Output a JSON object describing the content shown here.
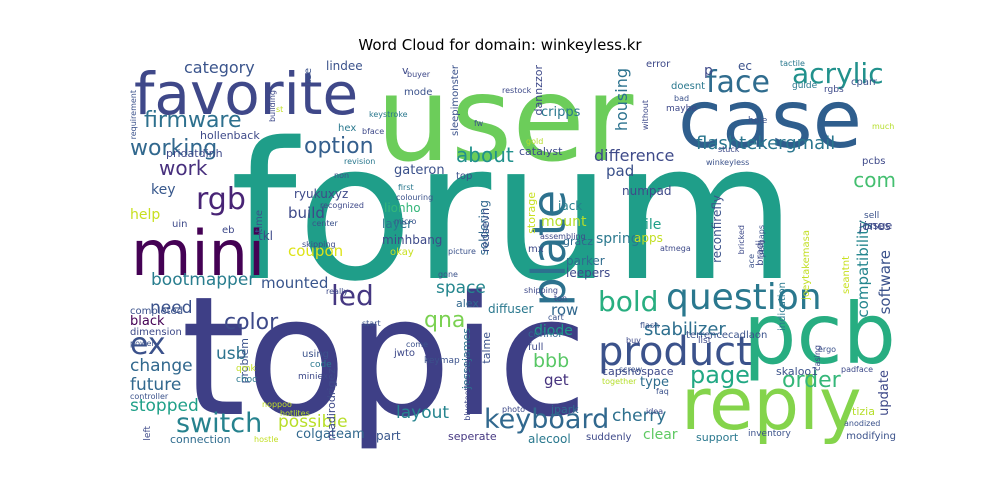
{
  "chart_data": {
    "type": "wordcloud",
    "title": "Word Cloud for domain: winkeyless.kr",
    "words": [
      {
        "text": "forum",
        "weight": 1.0,
        "color": "#1f9e89"
      },
      {
        "text": "topic",
        "weight": 0.93,
        "color": "#3e3f86"
      },
      {
        "text": "user",
        "weight": 0.66,
        "color": "#6ccd5a"
      },
      {
        "text": "case",
        "weight": 0.44,
        "color": "#2f5e8d"
      },
      {
        "text": "pcb",
        "weight": 0.44,
        "color": "#27ad81"
      },
      {
        "text": "reply",
        "weight": 0.38,
        "color": "#84d44b"
      },
      {
        "text": "mini",
        "weight": 0.36,
        "color": "#440154"
      },
      {
        "text": "favorite",
        "weight": 0.34,
        "color": "#3f4889"
      },
      {
        "text": "product",
        "weight": 0.25,
        "color": "#3b528b"
      },
      {
        "text": "question",
        "weight": 0.22,
        "color": "#2a788e"
      },
      {
        "text": "rgb",
        "weight": 0.18,
        "color": "#482475"
      },
      {
        "text": "plate",
        "weight": 0.17,
        "color": "#2c718e"
      },
      {
        "text": "face",
        "weight": 0.16,
        "color": "#2f6c8e"
      },
      {
        "text": "acrylic",
        "weight": 0.16,
        "color": "#21918c"
      },
      {
        "text": "bold",
        "weight": 0.16,
        "color": "#28ae80"
      },
      {
        "text": "ex",
        "weight": 0.16,
        "color": "#3b518b"
      },
      {
        "text": "keyboard",
        "weight": 0.15,
        "color": "#31688e"
      },
      {
        "text": "switch",
        "weight": 0.15,
        "color": "#26828e"
      },
      {
        "text": "led",
        "weight": 0.15,
        "color": "#453781"
      },
      {
        "text": "page",
        "weight": 0.14,
        "color": "#22a884"
      },
      {
        "text": "firmware",
        "weight": 0.13,
        "color": "#2d708e"
      },
      {
        "text": "working",
        "weight": 0.13,
        "color": "#31688e"
      },
      {
        "text": "color",
        "weight": 0.12,
        "color": "#3e4a89"
      },
      {
        "text": "order",
        "weight": 0.12,
        "color": "#35b779"
      },
      {
        "text": "option",
        "weight": 0.12,
        "color": "#355f8d"
      },
      {
        "text": "qna",
        "weight": 0.12,
        "color": "#7ad151"
      },
      {
        "text": "about",
        "weight": 0.11,
        "color": "#21918c"
      },
      {
        "text": "work",
        "weight": 0.11,
        "color": "#472f7d"
      },
      {
        "text": "com",
        "weight": 0.11,
        "color": "#44bf70"
      },
      {
        "text": "flashtekergmail",
        "weight": 0.11,
        "color": "#2a768e"
      },
      {
        "text": "category",
        "weight": 0.1,
        "color": "#3a548c"
      },
      {
        "text": "bootmapper",
        "weight": 0.1,
        "color": "#287d8e"
      },
      {
        "text": "bbb",
        "weight": 0.1,
        "color": "#58c765"
      },
      {
        "text": "stabilizer",
        "weight": 0.1,
        "color": "#2e6f8e"
      },
      {
        "text": "change",
        "weight": 0.1,
        "color": "#31688e"
      },
      {
        "text": "future",
        "weight": 0.1,
        "color": "#31688e"
      },
      {
        "text": "stopped",
        "weight": 0.1,
        "color": "#1fa088"
      },
      {
        "text": "layout",
        "weight": 0.1,
        "color": "#25848e"
      },
      {
        "text": "possible",
        "weight": 0.1,
        "color": "#b8de29"
      },
      {
        "text": "difference",
        "weight": 0.09,
        "color": "#3e4a89"
      },
      {
        "text": "housing",
        "weight": 0.09,
        "color": "#2c728e"
      },
      {
        "text": "usb",
        "weight": 0.09,
        "color": "#2c738e"
      },
      {
        "text": "space",
        "weight": 0.09,
        "color": "#24868e"
      },
      {
        "text": "need",
        "weight": 0.09,
        "color": "#3b528b"
      },
      {
        "text": "cherry",
        "weight": 0.09,
        "color": "#2d708e"
      },
      {
        "text": "software",
        "weight": 0.08,
        "color": "#3b528b"
      },
      {
        "text": "compatibility",
        "weight": 0.08,
        "color": "#24868e"
      },
      {
        "text": "mounted",
        "weight": 0.08,
        "color": "#39558c"
      },
      {
        "text": "coupon",
        "weight": 0.08,
        "color": "#dde318"
      },
      {
        "text": "build",
        "weight": 0.08,
        "color": "#3e4989"
      },
      {
        "text": "mount",
        "weight": 0.08,
        "color": "#b5de2b"
      },
      {
        "text": "key",
        "weight": 0.08,
        "color": "#38588c"
      },
      {
        "text": "help",
        "weight": 0.08,
        "color": "#c8e020"
      },
      {
        "text": "pad",
        "weight": 0.08,
        "color": "#3b518b"
      },
      {
        "text": "spring",
        "weight": 0.08,
        "color": "#2a788e"
      },
      {
        "text": "row",
        "weight": 0.08,
        "color": "#31688e"
      },
      {
        "text": "clear",
        "weight": 0.07,
        "color": "#5ec962"
      },
      {
        "text": "get",
        "weight": 0.07,
        "color": "#46337e"
      },
      {
        "text": "diode",
        "weight": 0.07,
        "color": "#1e9b8a"
      },
      {
        "text": "colgateam",
        "weight": 0.07,
        "color": "#31688e"
      },
      {
        "text": "gateron",
        "weight": 0.07,
        "color": "#3b518b"
      },
      {
        "text": "cripps",
        "weight": 0.07,
        "color": "#2a788e"
      },
      {
        "text": "file",
        "weight": 0.07,
        "color": "#1f9f88"
      },
      {
        "text": "ryukuxyz",
        "weight": 0.07,
        "color": "#3e4a89"
      },
      {
        "text": "update",
        "weight": 0.07,
        "color": "#3e4989"
      },
      {
        "text": "type",
        "weight": 0.07,
        "color": "#2f6c8e"
      },
      {
        "text": "lindee",
        "weight": 0.06,
        "color": "#3b528b"
      },
      {
        "text": "layer",
        "weight": 0.06,
        "color": "#2c728e"
      },
      {
        "text": "minhbang",
        "weight": 0.06,
        "color": "#3e4a89"
      },
      {
        "text": "lionho",
        "weight": 0.06,
        "color": "#34b679"
      },
      {
        "text": "jones",
        "weight": 0.06,
        "color": "#3e4a89"
      },
      {
        "text": "alecool",
        "weight": 0.06,
        "color": "#2a788e"
      },
      {
        "text": "part",
        "weight": 0.06,
        "color": "#39568c"
      },
      {
        "text": "apps",
        "weight": 0.06,
        "color": "#c2df23"
      },
      {
        "text": "tkl",
        "weight": 0.06,
        "color": "#3e4a89"
      },
      {
        "text": "parker",
        "weight": 0.06,
        "color": "#2f6c8e"
      },
      {
        "text": "leepers",
        "weight": 0.06,
        "color": "#3e4989"
      },
      {
        "text": "soldering",
        "weight": 0.06,
        "color": "#31688e"
      },
      {
        "text": "numpad",
        "weight": 0.06,
        "color": "#3e4a89"
      },
      {
        "text": "jack",
        "weight": 0.06,
        "color": "#277f8e"
      },
      {
        "text": "reconfirefly",
        "weight": 0.06,
        "color": "#3b528b"
      },
      {
        "text": "seperate",
        "weight": 0.05,
        "color": "#453781"
      },
      {
        "text": "support",
        "weight": 0.05,
        "color": "#2a788e"
      },
      {
        "text": "problem",
        "weight": 0.05,
        "color": "#3b528b"
      },
      {
        "text": "black",
        "weight": 0.05,
        "color": "#440154"
      },
      {
        "text": "issue",
        "weight": 0.05,
        "color": "#3e4a89"
      },
      {
        "text": "connection",
        "weight": 0.05,
        "color": "#2f6c8e"
      },
      {
        "text": "alex",
        "weight": 0.05,
        "color": "#31688e"
      },
      {
        "text": "diffuser",
        "weight": 0.05,
        "color": "#2a788e"
      },
      {
        "text": "skaloo1",
        "weight": 0.05,
        "color": "#3b528b"
      },
      {
        "text": "capsnospace",
        "weight": 0.05,
        "color": "#3e4989"
      },
      {
        "text": "jpark",
        "weight": 0.05,
        "color": "#2f6c8e"
      },
      {
        "text": "madirodrigez",
        "weight": 0.05,
        "color": "#3e4a89"
      },
      {
        "text": "jessejames",
        "weight": 0.05,
        "color": "#2c728e"
      },
      {
        "text": "talme",
        "weight": 0.05,
        "color": "#3b528b"
      },
      {
        "text": "gracz",
        "weight": 0.05,
        "color": "#31688e"
      },
      {
        "text": "hollenback",
        "weight": 0.05,
        "color": "#3e4a89"
      },
      {
        "text": "pridatdinh",
        "weight": 0.05,
        "color": "#3e4989"
      },
      {
        "text": "sleepimonster",
        "weight": 0.05,
        "color": "#3b528b"
      },
      {
        "text": "dannzzor",
        "weight": 0.05,
        "color": "#3e4989"
      },
      {
        "text": "catalyst",
        "weight": 0.05,
        "color": "#3e4a89"
      },
      {
        "text": "storage",
        "weight": 0.05,
        "color": "#c8e020"
      },
      {
        "text": "redsevn",
        "weight": 0.05,
        "color": "#3b528b"
      },
      {
        "text": "joeytakemasa",
        "weight": 0.05,
        "color": "#c2df23"
      },
      {
        "text": "indication",
        "weight": 0.05,
        "color": "#2a788e"
      },
      {
        "text": "seantnt",
        "weight": 0.05,
        "color": "#c8e020"
      },
      {
        "text": "terrencecadlaon",
        "weight": 0.05,
        "color": "#3b528b"
      },
      {
        "text": "bradj",
        "weight": 0.05,
        "color": "#3e4a89"
      },
      {
        "text": "mode",
        "weight": 0.05,
        "color": "#3b528b"
      },
      {
        "text": "error",
        "weight": 0.05,
        "color": "#3e4989"
      },
      {
        "text": "doesnt",
        "weight": 0.05,
        "color": "#2a788e"
      },
      {
        "text": "ec",
        "weight": 0.05,
        "color": "#3b528b"
      },
      {
        "text": "p",
        "weight": 0.05,
        "color": "#3e4989"
      },
      {
        "text": "okay",
        "weight": 0.05,
        "color": "#c8e020"
      },
      {
        "text": "dimension",
        "weight": 0.04,
        "color": "#3e4a89"
      },
      {
        "text": "completed",
        "weight": 0.04,
        "color": "#3b528b"
      },
      {
        "text": "uin",
        "weight": 0.04,
        "color": "#3e4a89"
      },
      {
        "text": "eb",
        "weight": 0.04,
        "color": "#3e4989"
      },
      {
        "text": "top",
        "weight": 0.04,
        "color": "#3b528b"
      },
      {
        "text": "mx",
        "weight": 0.04,
        "color": "#3e4a89"
      },
      {
        "text": "tizia",
        "weight": 0.04,
        "color": "#b5de2b"
      },
      {
        "text": "use",
        "weight": 0.04,
        "color": "#3b528b"
      },
      {
        "text": "hex",
        "weight": 0.04,
        "color": "#2a788e"
      },
      {
        "text": "time",
        "weight": 0.04,
        "color": "#3b528b"
      },
      {
        "text": "jwto",
        "weight": 0.04,
        "color": "#3e4989"
      },
      {
        "text": "connor",
        "weight": 0.04,
        "color": "#31688e"
      },
      {
        "text": "full",
        "weight": 0.04,
        "color": "#3e4a89"
      },
      {
        "text": "using",
        "weight": 0.04,
        "color": "#3b528b"
      },
      {
        "text": "code",
        "weight": 0.04,
        "color": "#2a788e"
      },
      {
        "text": "qmk",
        "weight": 0.04,
        "color": "#c2df23"
      },
      {
        "text": "keymap",
        "weight": 0.04,
        "color": "#3b528b"
      },
      {
        "text": "miniex",
        "weight": 0.04,
        "color": "#3e4a89"
      },
      {
        "text": "choc",
        "weight": 0.04,
        "color": "#2a788e"
      },
      {
        "text": "modifying",
        "weight": 0.04,
        "color": "#3b528b"
      },
      {
        "text": "suddenly",
        "weight": 0.04,
        "color": "#3e4989"
      },
      {
        "text": "inventory",
        "weight": 0.04,
        "color": "#3b528b"
      },
      {
        "text": "list",
        "weight": 0.04,
        "color": "#3e4a89"
      },
      {
        "text": "sell",
        "weight": 0.04,
        "color": "#3b528b"
      },
      {
        "text": "pcbs",
        "weight": 0.04,
        "color": "#3e4989"
      },
      {
        "text": "cparr",
        "weight": 0.04,
        "color": "#3b528b"
      },
      {
        "text": "rgbs",
        "weight": 0.04,
        "color": "#3e4a89"
      },
      {
        "text": "guide",
        "weight": 0.04,
        "color": "#2a788e"
      },
      {
        "text": "hole",
        "weight": 0.04,
        "color": "#3b528b"
      },
      {
        "text": "maybe",
        "weight": 0.04,
        "color": "#3e4989"
      },
      {
        "text": "much",
        "weight": 0.03,
        "color": "#b5de2b"
      },
      {
        "text": "ergo",
        "weight": 0.03,
        "color": "#3b528b"
      },
      {
        "text": "padface",
        "weight": 0.03,
        "color": "#3e4a89"
      },
      {
        "text": "flash",
        "weight": 0.03,
        "color": "#3b528b"
      },
      {
        "text": "shipping",
        "weight": 0.03,
        "color": "#3e4989"
      },
      {
        "text": "faq",
        "weight": 0.03,
        "color": "#3b528b"
      },
      {
        "text": "idea",
        "weight": 0.03,
        "color": "#3e4a89"
      },
      {
        "text": "buy",
        "weight": 0.03,
        "color": "#3e4989"
      },
      {
        "text": "fw",
        "weight": 0.03,
        "color": "#3b528b"
      },
      {
        "text": "restock",
        "weight": 0.03,
        "color": "#3e4a89"
      },
      {
        "text": "keystroke",
        "weight": 0.03,
        "color": "#2a788e"
      },
      {
        "text": "buyer",
        "weight": 0.03,
        "color": "#3e4989"
      },
      {
        "text": "non",
        "weight": 0.03,
        "color": "#3b528b"
      },
      {
        "text": "revision",
        "weight": 0.03,
        "color": "#2a788e"
      },
      {
        "text": "bface",
        "weight": 0.03,
        "color": "#3e4989"
      },
      {
        "text": "first",
        "weight": 0.03,
        "color": "#2a788e"
      },
      {
        "text": "colouring",
        "weight": 0.03,
        "color": "#3b528b"
      },
      {
        "text": "recognized",
        "weight": 0.03,
        "color": "#3e4989"
      },
      {
        "text": "center",
        "weight": 0.03,
        "color": "#3b528b"
      },
      {
        "text": "skipping",
        "weight": 0.03,
        "color": "#3e4a89"
      },
      {
        "text": "micro",
        "weight": 0.03,
        "color": "#3b528b"
      },
      {
        "text": "assembling",
        "weight": 0.03,
        "color": "#3e4989"
      },
      {
        "text": "picture",
        "weight": 0.03,
        "color": "#3b528b"
      },
      {
        "text": "atmega",
        "weight": 0.03,
        "color": "#3e4a89"
      },
      {
        "text": "gone",
        "weight": 0.03,
        "color": "#3b528b"
      },
      {
        "text": "ton",
        "weight": 0.03,
        "color": "#3e4989"
      },
      {
        "text": "cart",
        "weight": 0.03,
        "color": "#3b528b"
      },
      {
        "text": "really",
        "weight": 0.03,
        "color": "#3e4a89"
      },
      {
        "text": "come",
        "weight": 0.03,
        "color": "#3b528b"
      },
      {
        "text": "bluetoothwireless",
        "weight": 0.03,
        "color": "#3e4989"
      },
      {
        "text": "together",
        "weight": 0.03,
        "color": "#b5de2b"
      },
      {
        "text": "screw",
        "weight": 0.03,
        "color": "#3b528b"
      },
      {
        "text": "photo",
        "weight": 0.03,
        "color": "#3e4a89"
      },
      {
        "text": "controller",
        "weight": 0.03,
        "color": "#3b528b"
      },
      {
        "text": "noppoo",
        "weight": 0.03,
        "color": "#c2df23"
      },
      {
        "text": "hotlites",
        "weight": 0.03,
        "color": "#b5de2b"
      },
      {
        "text": "hostle",
        "weight": 0.03,
        "color": "#c2df23"
      },
      {
        "text": "power",
        "weight": 0.03,
        "color": "#3b528b"
      },
      {
        "text": "left",
        "weight": 0.03,
        "color": "#3e4a89"
      },
      {
        "text": "anodized",
        "weight": 0.03,
        "color": "#3b528b"
      },
      {
        "text": "casing",
        "weight": 0.03,
        "color": "#3e4989"
      },
      {
        "text": "perhaps",
        "weight": 0.03,
        "color": "#3b528b"
      },
      {
        "text": "bricked",
        "weight": 0.03,
        "color": "#3e4a89"
      },
      {
        "text": "ace",
        "weight": 0.03,
        "color": "#3b528b"
      },
      {
        "text": "tactile",
        "weight": 0.03,
        "color": "#2a788e"
      },
      {
        "text": "bad",
        "weight": 0.03,
        "color": "#3b528b"
      },
      {
        "text": "without",
        "weight": 0.03,
        "color": "#3e4989"
      },
      {
        "text": "winkeyless",
        "weight": 0.03,
        "color": "#3b528b"
      },
      {
        "text": "stuck",
        "weight": 0.03,
        "color": "#3e4a89"
      },
      {
        "text": "gold",
        "weight": 0.03,
        "color": "#b5de2b"
      },
      {
        "text": "requirement",
        "weight": 0.03,
        "color": "#3b528b"
      },
      {
        "text": "building",
        "weight": 0.03,
        "color": "#3e4989"
      },
      {
        "text": "st",
        "weight": 0.03,
        "color": "#c2df23"
      },
      {
        "text": "start",
        "weight": 0.03,
        "color": "#3b528b"
      },
      {
        "text": "v",
        "weight": 0.03,
        "color": "#3e4a89"
      }
    ]
  }
}
